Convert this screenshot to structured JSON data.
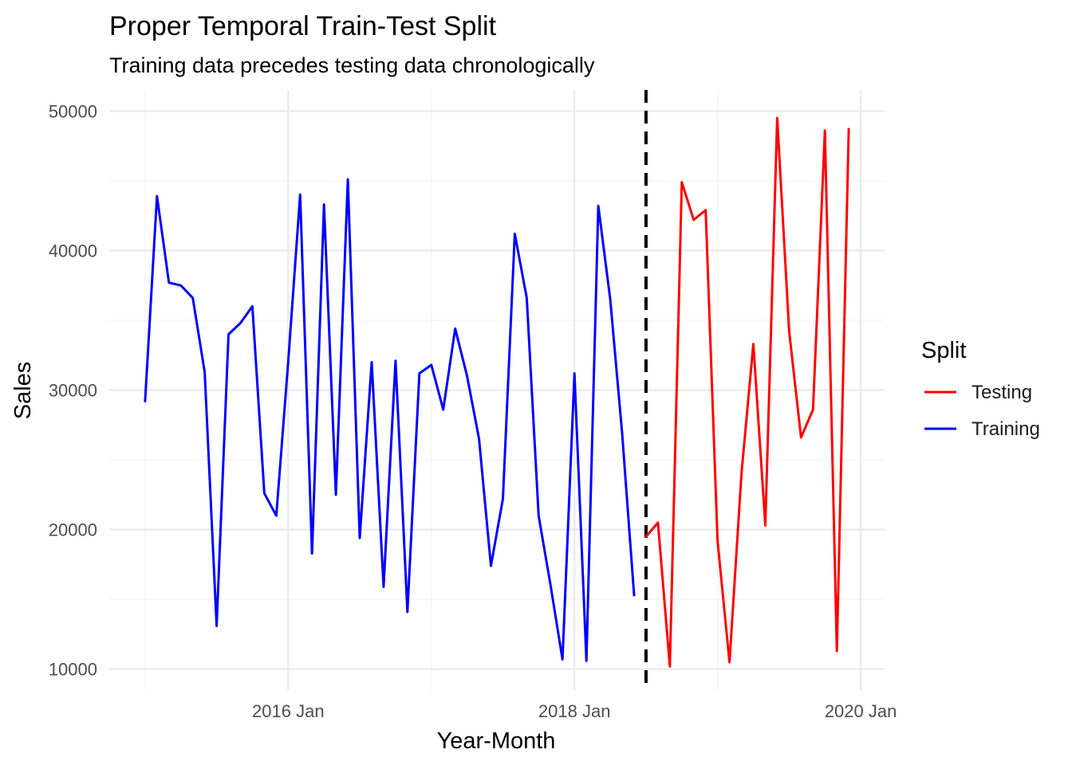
{
  "chart_data": {
    "type": "line",
    "title": "Proper Temporal Train-Test Split",
    "subtitle": "Training data precedes testing data chronologically",
    "xlabel": "Year-Month",
    "ylabel": "Sales",
    "x_tick_labels": [
      "2016 Jan",
      "2018 Jan",
      "2020 Jan"
    ],
    "y_ticks": [
      10000,
      20000,
      30000,
      40000,
      50000
    ],
    "ylim": [
      8500,
      51500
    ],
    "xlim": [
      "2014-10",
      "2020-03"
    ],
    "grid": true,
    "split_marker": {
      "style": "dashed",
      "date": "2018-07"
    },
    "legend": {
      "title": "Split",
      "position": "right",
      "entries": [
        {
          "label": "Testing",
          "color": "#ff0000"
        },
        {
          "label": "Training",
          "color": "#0000ff"
        }
      ]
    },
    "series": [
      {
        "name": "Training",
        "color": "#0000ff",
        "x": [
          "2015-01",
          "2015-02",
          "2015-03",
          "2015-04",
          "2015-05",
          "2015-06",
          "2015-07",
          "2015-08",
          "2015-09",
          "2015-10",
          "2015-11",
          "2015-12",
          "2016-01",
          "2016-02",
          "2016-03",
          "2016-04",
          "2016-05",
          "2016-06",
          "2016-07",
          "2016-08",
          "2016-09",
          "2016-10",
          "2016-11",
          "2016-12",
          "2017-01",
          "2017-02",
          "2017-03",
          "2017-04",
          "2017-05",
          "2017-06",
          "2017-07",
          "2017-08",
          "2017-09",
          "2017-10",
          "2017-11",
          "2017-12",
          "2018-01",
          "2018-02",
          "2018-03",
          "2018-04",
          "2018-05",
          "2018-06"
        ],
        "values": [
          29200,
          43900,
          37700,
          37500,
          36600,
          31300,
          13100,
          34000,
          34800,
          36000,
          22600,
          21000,
          32000,
          44000,
          18300,
          43300,
          22500,
          45100,
          19400,
          32000,
          15900,
          32100,
          14100,
          31200,
          31800,
          28600,
          34400,
          31000,
          26500,
          17400,
          22200,
          41200,
          36600,
          21000,
          16000,
          10700,
          31200,
          10600,
          43200,
          36500,
          26900,
          15300
        ]
      },
      {
        "name": "Testing",
        "color": "#ff0000",
        "x": [
          "2018-07",
          "2018-08",
          "2018-09",
          "2018-10",
          "2018-11",
          "2018-12",
          "2019-01",
          "2019-02",
          "2019-03",
          "2019-04",
          "2019-05",
          "2019-06",
          "2019-07",
          "2019-08",
          "2019-09",
          "2019-10",
          "2019-11",
          "2019-12"
        ],
        "values": [
          19500,
          20500,
          10200,
          44900,
          42200,
          42900,
          19200,
          10500,
          24000,
          33300,
          20300,
          49500,
          34200,
          26600,
          28600,
          48600,
          11300,
          48700
        ]
      }
    ]
  }
}
